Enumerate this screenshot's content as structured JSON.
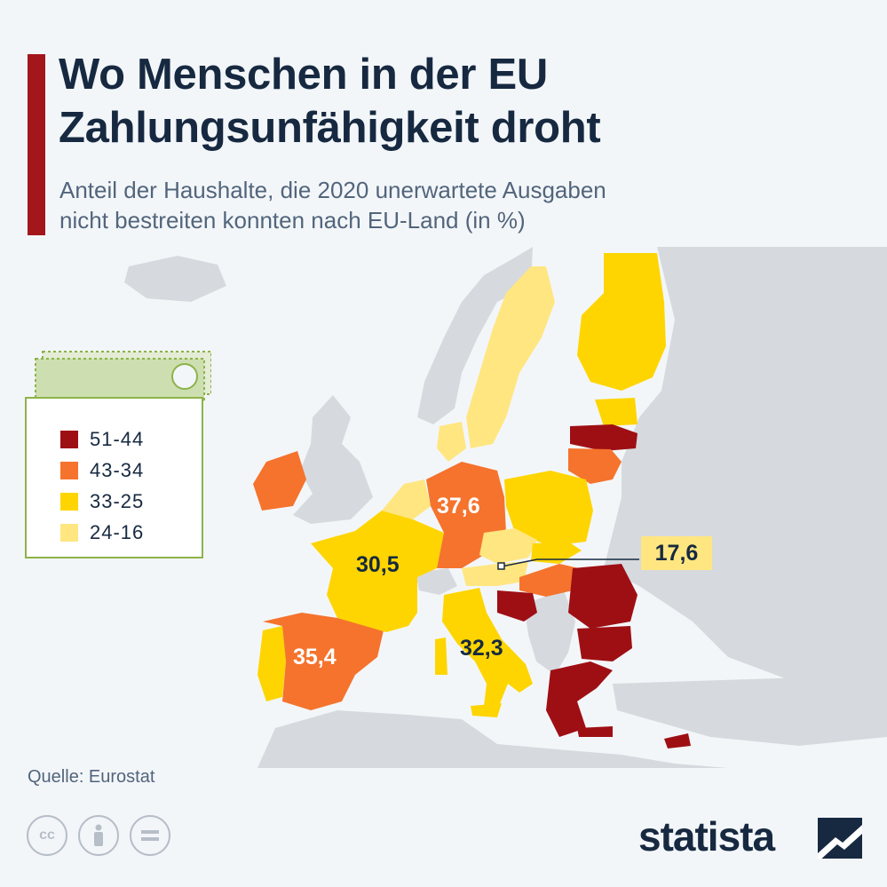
{
  "header": {
    "title_line1": "Wo Menschen in der EU",
    "title_line2": "Zahlungsunfähigkeit droht",
    "subtitle_line1": "Anteil der Haushalte, die 2020 unerwartete Ausgaben",
    "subtitle_line2": "nicht bestreiten konnten nach EU-Land (in %)"
  },
  "legend": {
    "items": [
      {
        "label": "51-44",
        "color": "#9e0f14"
      },
      {
        "label": "43-34",
        "color": "#f5732d"
      },
      {
        "label": "33-25",
        "color": "#fed500"
      },
      {
        "label": "24-16",
        "color": "#ffe680"
      }
    ]
  },
  "map_labels": {
    "germany": "37,6",
    "france": "30,5",
    "spain": "35,4",
    "italy": "32,3",
    "czechia": "17,6"
  },
  "colors": {
    "accent": "#a3161c",
    "title": "#162940",
    "subtitle": "#52657c",
    "nonEU_land": "#d6dade",
    "background": "#f3f6f9"
  },
  "footer": {
    "source": "Quelle: Eurostat",
    "brand": "statista",
    "license_icons": [
      "creative-commons-icon",
      "attribution-icon",
      "no-derivatives-icon"
    ]
  }
}
